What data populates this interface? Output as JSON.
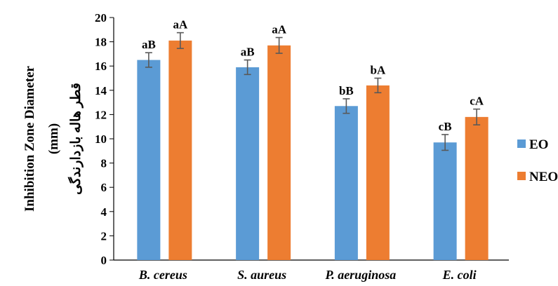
{
  "chart_data": {
    "type": "bar",
    "ylabel_lines": [
      "Inhibition Zone Diameter",
      "(mm)",
      "قطر هاله بازدارندگی"
    ],
    "ylim": [
      0,
      20
    ],
    "yticks": [
      0,
      2,
      4,
      6,
      8,
      10,
      12,
      14,
      16,
      18,
      20
    ],
    "categories": [
      "B. cereus",
      "S. aureus",
      "P. aeruginosa",
      "E. coli"
    ],
    "series": [
      {
        "name": "EO",
        "color": "#5b9bd5",
        "values": [
          16.5,
          15.9,
          12.7,
          9.7
        ],
        "errors": [
          0.6,
          0.6,
          0.6,
          0.65
        ],
        "labels": [
          "aB",
          "aB",
          "bB",
          "cB"
        ]
      },
      {
        "name": "NEO",
        "color": "#ed7d31",
        "values": [
          18.1,
          17.7,
          14.4,
          11.8
        ],
        "errors": [
          0.65,
          0.65,
          0.6,
          0.65
        ],
        "labels": [
          "aA",
          "aA",
          "bA",
          "cA"
        ]
      }
    ],
    "grid": false,
    "legend_position": "right"
  }
}
